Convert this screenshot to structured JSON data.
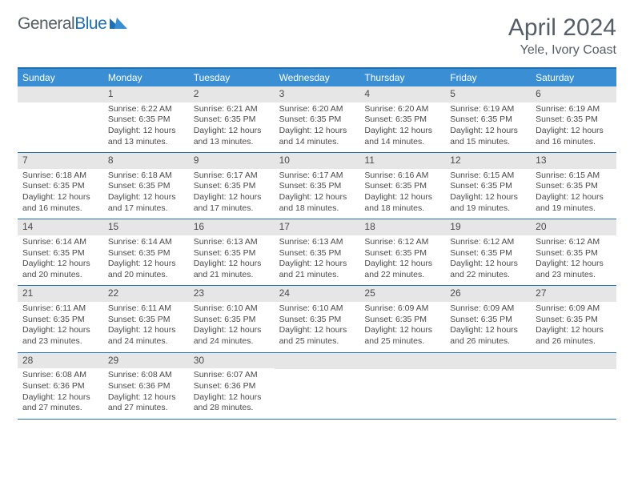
{
  "colors": {
    "header_bg": "#3a8fd4",
    "border": "#1f6fb2",
    "daynum_bg": "#e6e6e6",
    "text": "#4a4a4a",
    "logo_gray": "#555d66",
    "logo_blue": "#1f6fb2"
  },
  "logo": {
    "word1": "General",
    "word2": "Blue"
  },
  "title": "April 2024",
  "location": "Yele, Ivory Coast",
  "weekdays": [
    "Sunday",
    "Monday",
    "Tuesday",
    "Wednesday",
    "Thursday",
    "Friday",
    "Saturday"
  ],
  "weeks": [
    [
      {
        "empty": true
      },
      {
        "day": "1",
        "sunrise": "Sunrise: 6:22 AM",
        "sunset": "Sunset: 6:35 PM",
        "daylight": "Daylight: 12 hours and 13 minutes."
      },
      {
        "day": "2",
        "sunrise": "Sunrise: 6:21 AM",
        "sunset": "Sunset: 6:35 PM",
        "daylight": "Daylight: 12 hours and 13 minutes."
      },
      {
        "day": "3",
        "sunrise": "Sunrise: 6:20 AM",
        "sunset": "Sunset: 6:35 PM",
        "daylight": "Daylight: 12 hours and 14 minutes."
      },
      {
        "day": "4",
        "sunrise": "Sunrise: 6:20 AM",
        "sunset": "Sunset: 6:35 PM",
        "daylight": "Daylight: 12 hours and 14 minutes."
      },
      {
        "day": "5",
        "sunrise": "Sunrise: 6:19 AM",
        "sunset": "Sunset: 6:35 PM",
        "daylight": "Daylight: 12 hours and 15 minutes."
      },
      {
        "day": "6",
        "sunrise": "Sunrise: 6:19 AM",
        "sunset": "Sunset: 6:35 PM",
        "daylight": "Daylight: 12 hours and 16 minutes."
      }
    ],
    [
      {
        "day": "7",
        "sunrise": "Sunrise: 6:18 AM",
        "sunset": "Sunset: 6:35 PM",
        "daylight": "Daylight: 12 hours and 16 minutes."
      },
      {
        "day": "8",
        "sunrise": "Sunrise: 6:18 AM",
        "sunset": "Sunset: 6:35 PM",
        "daylight": "Daylight: 12 hours and 17 minutes."
      },
      {
        "day": "9",
        "sunrise": "Sunrise: 6:17 AM",
        "sunset": "Sunset: 6:35 PM",
        "daylight": "Daylight: 12 hours and 17 minutes."
      },
      {
        "day": "10",
        "sunrise": "Sunrise: 6:17 AM",
        "sunset": "Sunset: 6:35 PM",
        "daylight": "Daylight: 12 hours and 18 minutes."
      },
      {
        "day": "11",
        "sunrise": "Sunrise: 6:16 AM",
        "sunset": "Sunset: 6:35 PM",
        "daylight": "Daylight: 12 hours and 18 minutes."
      },
      {
        "day": "12",
        "sunrise": "Sunrise: 6:15 AM",
        "sunset": "Sunset: 6:35 PM",
        "daylight": "Daylight: 12 hours and 19 minutes."
      },
      {
        "day": "13",
        "sunrise": "Sunrise: 6:15 AM",
        "sunset": "Sunset: 6:35 PM",
        "daylight": "Daylight: 12 hours and 19 minutes."
      }
    ],
    [
      {
        "day": "14",
        "sunrise": "Sunrise: 6:14 AM",
        "sunset": "Sunset: 6:35 PM",
        "daylight": "Daylight: 12 hours and 20 minutes."
      },
      {
        "day": "15",
        "sunrise": "Sunrise: 6:14 AM",
        "sunset": "Sunset: 6:35 PM",
        "daylight": "Daylight: 12 hours and 20 minutes."
      },
      {
        "day": "16",
        "sunrise": "Sunrise: 6:13 AM",
        "sunset": "Sunset: 6:35 PM",
        "daylight": "Daylight: 12 hours and 21 minutes."
      },
      {
        "day": "17",
        "sunrise": "Sunrise: 6:13 AM",
        "sunset": "Sunset: 6:35 PM",
        "daylight": "Daylight: 12 hours and 21 minutes."
      },
      {
        "day": "18",
        "sunrise": "Sunrise: 6:12 AM",
        "sunset": "Sunset: 6:35 PM",
        "daylight": "Daylight: 12 hours and 22 minutes."
      },
      {
        "day": "19",
        "sunrise": "Sunrise: 6:12 AM",
        "sunset": "Sunset: 6:35 PM",
        "daylight": "Daylight: 12 hours and 22 minutes."
      },
      {
        "day": "20",
        "sunrise": "Sunrise: 6:12 AM",
        "sunset": "Sunset: 6:35 PM",
        "daylight": "Daylight: 12 hours and 23 minutes."
      }
    ],
    [
      {
        "day": "21",
        "sunrise": "Sunrise: 6:11 AM",
        "sunset": "Sunset: 6:35 PM",
        "daylight": "Daylight: 12 hours and 23 minutes."
      },
      {
        "day": "22",
        "sunrise": "Sunrise: 6:11 AM",
        "sunset": "Sunset: 6:35 PM",
        "daylight": "Daylight: 12 hours and 24 minutes."
      },
      {
        "day": "23",
        "sunrise": "Sunrise: 6:10 AM",
        "sunset": "Sunset: 6:35 PM",
        "daylight": "Daylight: 12 hours and 24 minutes."
      },
      {
        "day": "24",
        "sunrise": "Sunrise: 6:10 AM",
        "sunset": "Sunset: 6:35 PM",
        "daylight": "Daylight: 12 hours and 25 minutes."
      },
      {
        "day": "25",
        "sunrise": "Sunrise: 6:09 AM",
        "sunset": "Sunset: 6:35 PM",
        "daylight": "Daylight: 12 hours and 25 minutes."
      },
      {
        "day": "26",
        "sunrise": "Sunrise: 6:09 AM",
        "sunset": "Sunset: 6:35 PM",
        "daylight": "Daylight: 12 hours and 26 minutes."
      },
      {
        "day": "27",
        "sunrise": "Sunrise: 6:09 AM",
        "sunset": "Sunset: 6:35 PM",
        "daylight": "Daylight: 12 hours and 26 minutes."
      }
    ],
    [
      {
        "day": "28",
        "sunrise": "Sunrise: 6:08 AM",
        "sunset": "Sunset: 6:36 PM",
        "daylight": "Daylight: 12 hours and 27 minutes."
      },
      {
        "day": "29",
        "sunrise": "Sunrise: 6:08 AM",
        "sunset": "Sunset: 6:36 PM",
        "daylight": "Daylight: 12 hours and 27 minutes."
      },
      {
        "day": "30",
        "sunrise": "Sunrise: 6:07 AM",
        "sunset": "Sunset: 6:36 PM",
        "daylight": "Daylight: 12 hours and 28 minutes."
      },
      {
        "empty": true
      },
      {
        "empty": true
      },
      {
        "empty": true
      },
      {
        "empty": true
      }
    ]
  ]
}
